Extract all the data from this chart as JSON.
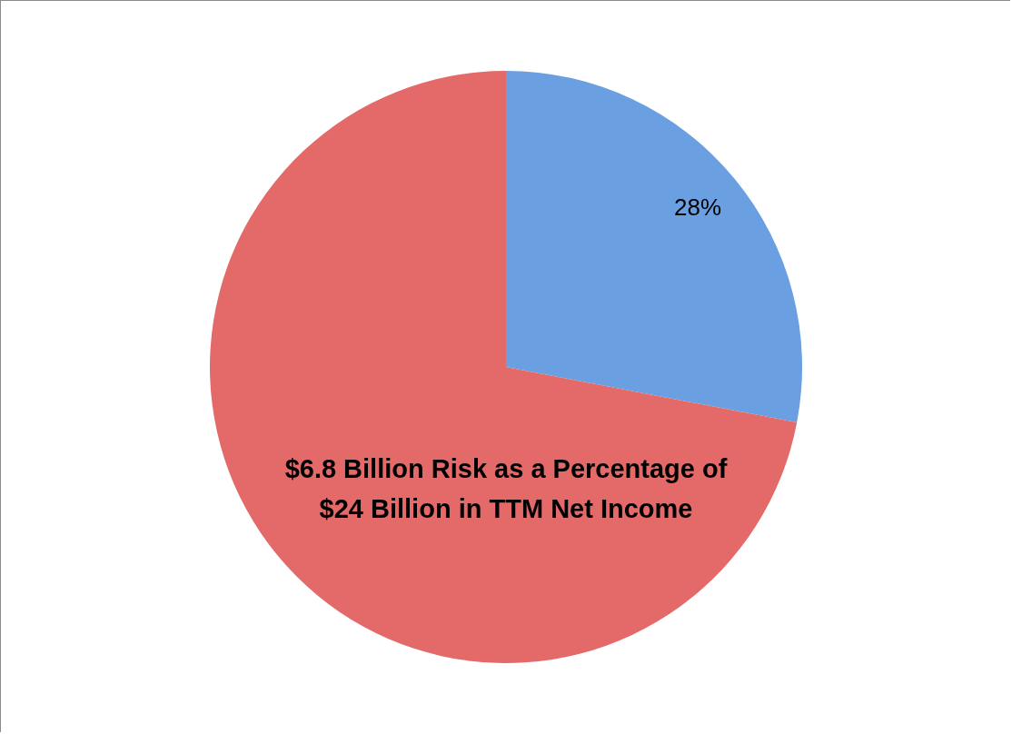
{
  "chart_data": {
    "type": "pie",
    "title": "$6.8 Billion Risk as a Percentage of $24 Billion in TTM Net Income",
    "categories": [
      null,
      null
    ],
    "values": [
      28,
      72
    ],
    "colors": [
      "#6a9fe2",
      "#e36a68"
    ],
    "value_labels": [
      "28%",
      null
    ]
  }
}
